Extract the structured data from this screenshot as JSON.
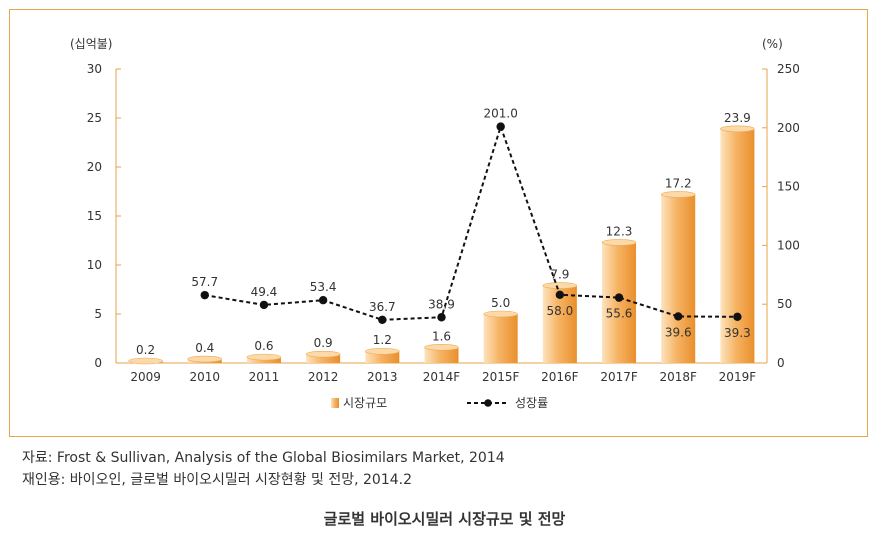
{
  "chart_data": {
    "type": "bar",
    "title": "",
    "categories": [
      "2009",
      "2010",
      "2011",
      "2012",
      "2013",
      "2014F",
      "2015F",
      "2016F",
      "2017F",
      "2018F",
      "2019F"
    ],
    "series": [
      {
        "name": "시장규모",
        "type": "bar",
        "axis": "left",
        "values": [
          0.2,
          0.4,
          0.6,
          0.9,
          1.2,
          1.6,
          5.0,
          7.9,
          12.3,
          17.2,
          23.9
        ],
        "labels": [
          "0.2",
          "0.4",
          "0.6",
          "0.9",
          "1.2",
          "1.6",
          "5.0",
          "7.9",
          "12.3",
          "17.2",
          "23.9"
        ]
      },
      {
        "name": "성장률",
        "type": "line",
        "axis": "right",
        "values": [
          null,
          57.7,
          49.4,
          53.4,
          36.7,
          38.9,
          201.0,
          58.0,
          55.6,
          39.6,
          39.3
        ],
        "labels": [
          "",
          "57.7",
          "49.4",
          "53.4",
          "36.7",
          "38.9",
          "201.0",
          "58.0",
          "55.6",
          "39.6",
          "39.3"
        ]
      }
    ],
    "y_left": {
      "label": "(십억불)",
      "ylim": [
        0,
        30
      ],
      "ticks": [
        "0",
        "5",
        "10",
        "15",
        "20",
        "25",
        "30"
      ]
    },
    "y_right": {
      "label": "(%)",
      "ylim": [
        0,
        250
      ],
      "ticks": [
        "0",
        "50",
        "100",
        "150",
        "200",
        "250"
      ]
    },
    "grid": false,
    "legend": {
      "placement": "bottom",
      "entries": [
        "시장규모",
        "성장률"
      ]
    },
    "colors": {
      "bar_light": "#fbd6a3",
      "bar_dark": "#ec9a3c",
      "line": "#111111",
      "axis": "#e6a64a",
      "frame": "#e6a64a"
    }
  },
  "source": {
    "line1": "자료: Frost & Sullivan, Analysis of the Global Biosimilars Market, 2014",
    "line2": "재인용: 바이오인, 글로벌 바이오시밀러 시장현황 및 전망, 2014.2"
  },
  "caption": "글로벌 바이오시밀러 시장규모 및 전망"
}
